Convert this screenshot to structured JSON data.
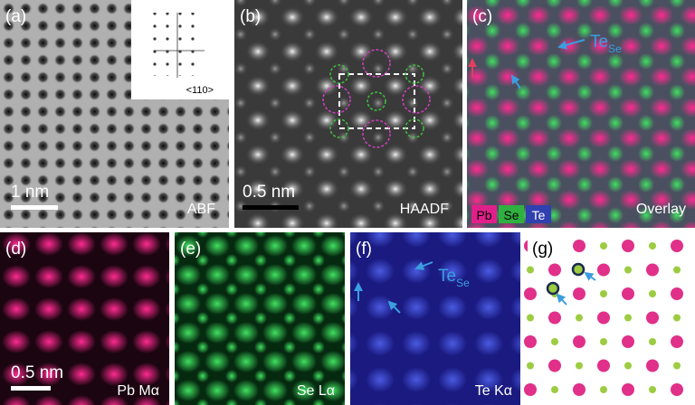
{
  "panels": [
    {
      "label": "(a)",
      "inset_label": "<110>",
      "scale_bar": "1 nm",
      "mode": "ABF"
    },
    {
      "label": "(b)",
      "scale_bar": "0.5 nm",
      "mode": "HAADF"
    },
    {
      "label": "(c)",
      "annotation": {
        "main": "Te",
        "sub": "Se"
      },
      "legend": [
        "Pb",
        "Se",
        "Te"
      ],
      "mode": "Overlay"
    },
    {
      "label": "(d)",
      "scale_bar": "0.5 nm",
      "mode": "Pb Mα"
    },
    {
      "label": "(e)",
      "mode": "Se Lα"
    },
    {
      "label": "(f)",
      "annotation": {
        "main": "Te",
        "sub": "Se"
      },
      "mode": "Te Kα"
    },
    {
      "label": "(g)"
    }
  ]
}
